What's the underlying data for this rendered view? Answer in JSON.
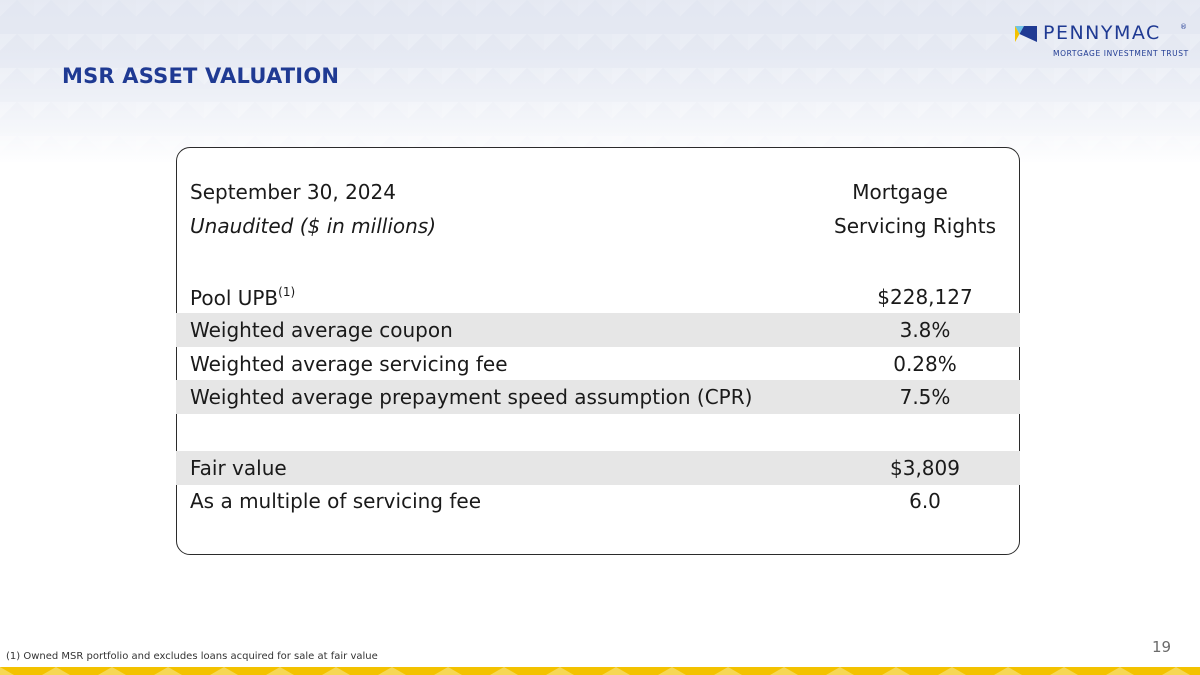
{
  "brand": {
    "name": "PENNYMAC",
    "registered": "®",
    "subtitle": "MORTGAGE INVESTMENT TRUST",
    "colors": {
      "navy": "#1f3a93",
      "yellow": "#f3c200",
      "light_blue": "#6fc3e6"
    }
  },
  "slide": {
    "title": "MSR ASSET VALUATION",
    "page_number": "19",
    "footnote": "(1) Owned MSR portfolio and excludes loans acquired for sale at fair value"
  },
  "table": {
    "header": {
      "date": "September 30, 2024",
      "basis": "Unaudited ($ in millions)",
      "column_line1": "Mortgage",
      "column_line2": "Servicing Rights"
    },
    "rows": [
      {
        "label": "Pool UPB",
        "superscript": "(1)",
        "value": "$228,127",
        "shaded": false
      },
      {
        "label": "Weighted average coupon",
        "value": "3.8%",
        "shaded": true
      },
      {
        "label": "Weighted average servicing fee",
        "value": "0.28%",
        "shaded": false
      },
      {
        "label": "Weighted average prepayment speed assumption (CPR)",
        "value": "7.5%",
        "shaded": true
      },
      {
        "label": "Fair value",
        "value": "$3,809",
        "shaded": true
      },
      {
        "label": "As a multiple of servicing fee",
        "value": "6.0",
        "shaded": false
      }
    ]
  }
}
